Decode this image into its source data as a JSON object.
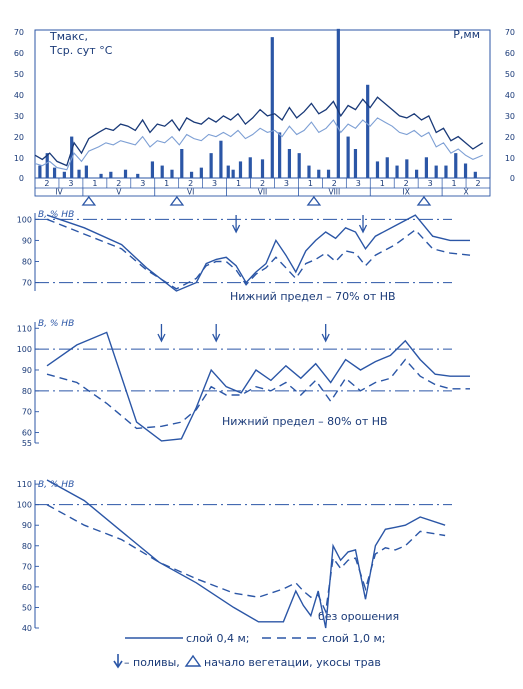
{
  "colors": {
    "ink": "#2b56a6",
    "light": "#7d9fd4",
    "dark": "#1a3a78"
  },
  "chart_data": [
    {
      "type": "bar",
      "title": "",
      "ylabel_left_lines": [
        "Тмакс,",
        "Тср. сут °С"
      ],
      "ylabel_right": "Р,мм",
      "left_ticks": [
        "70",
        "60",
        "50",
        "40",
        "30",
        "20",
        "10",
        "0"
      ],
      "right_ticks": [
        "70",
        "60",
        "50",
        "40",
        "30",
        "20",
        "10",
        "0"
      ],
      "ylim": [
        0,
        70
      ],
      "months": [
        "IV",
        "V",
        "VI",
        "VII",
        "VIII",
        "IX",
        "X"
      ],
      "decades": [
        "2",
        "3",
        "1",
        "2",
        "3",
        "1",
        "2",
        "3",
        "1",
        "2",
        "3",
        "1",
        "2",
        "3",
        "1",
        "2",
        "3",
        "1",
        "2"
      ],
      "series": [
        {
          "name": "Тмакс",
          "x": [
            0,
            3,
            6,
            9,
            13,
            16,
            19,
            22,
            26,
            29,
            32,
            35,
            38,
            41,
            44,
            47,
            50,
            53,
            56,
            59,
            62,
            65,
            68,
            71,
            74,
            77,
            80,
            83,
            86,
            89,
            92,
            95,
            98,
            101,
            104,
            107,
            110,
            113,
            116,
            119,
            122,
            125,
            128,
            131,
            134,
            137,
            140,
            143,
            146,
            149,
            152,
            155,
            158,
            161,
            164,
            167,
            170,
            173,
            176,
            179,
            183
          ],
          "values": [
            11,
            9,
            12,
            8,
            6,
            17,
            12,
            19,
            22,
            24,
            23,
            26,
            25,
            23,
            28,
            22,
            26,
            25,
            28,
            23,
            29,
            27,
            26,
            29,
            27,
            30,
            28,
            31,
            26,
            29,
            33,
            30,
            31,
            28,
            34,
            29,
            32,
            36,
            31,
            33,
            37,
            30,
            35,
            33,
            38,
            34,
            39,
            36,
            33,
            30,
            29,
            31,
            28,
            30,
            22,
            24,
            18,
            20,
            17,
            14,
            17
          ]
        },
        {
          "name": "Тср. сут",
          "x": [
            0,
            3,
            6,
            9,
            13,
            16,
            19,
            22,
            26,
            29,
            32,
            35,
            38,
            41,
            44,
            47,
            50,
            53,
            56,
            59,
            62,
            65,
            68,
            71,
            74,
            77,
            80,
            83,
            86,
            89,
            92,
            95,
            98,
            101,
            104,
            107,
            110,
            113,
            116,
            119,
            122,
            125,
            128,
            131,
            134,
            137,
            140,
            143,
            146,
            149,
            152,
            155,
            158,
            161,
            164,
            167,
            170,
            173,
            176,
            179,
            183
          ],
          "values": [
            7,
            6,
            8,
            5,
            4,
            12,
            8,
            13,
            15,
            17,
            16,
            18,
            17,
            16,
            20,
            15,
            18,
            17,
            20,
            16,
            21,
            19,
            18,
            21,
            20,
            22,
            20,
            23,
            19,
            21,
            24,
            22,
            23,
            20,
            25,
            21,
            23,
            27,
            22,
            24,
            28,
            22,
            26,
            24,
            28,
            25,
            29,
            27,
            25,
            22,
            21,
            23,
            20,
            22,
            15,
            17,
            12,
            14,
            11,
            9,
            11
          ]
        },
        {
          "name": "Р",
          "x": [
            2,
            5,
            8,
            12,
            15,
            18,
            21,
            27,
            31,
            37,
            42,
            48,
            52,
            56,
            60,
            64,
            68,
            72,
            76,
            79,
            81,
            84,
            88,
            93,
            97,
            100,
            104,
            108,
            112,
            116,
            120,
            124,
            128,
            131,
            136,
            140,
            144,
            148,
            152,
            156,
            160,
            164,
            168,
            172,
            176,
            180
          ],
          "values": [
            6,
            12,
            5,
            3,
            20,
            4,
            6,
            2,
            3,
            4,
            2,
            8,
            6,
            4,
            14,
            3,
            5,
            12,
            18,
            6,
            4,
            8,
            10,
            9,
            68,
            22,
            14,
            12,
            6,
            4,
            4,
            72,
            20,
            14,
            45,
            8,
            10,
            6,
            9,
            4,
            10,
            6,
            6,
            12,
            7,
            3
          ]
        }
      ],
      "markers_x": [
        22,
        58,
        114,
        159
      ]
    },
    {
      "type": "line",
      "ylabel": "В, % НВ",
      "yticks": [
        "100",
        "90",
        "80",
        "70"
      ],
      "ylim": [
        66,
        103
      ],
      "threshold": 70,
      "upper": 100,
      "annotation": "Нижний предел – 70% от НВ",
      "series": [
        {
          "name": "слой 0,4 м",
          "x": [
            0,
            15,
            30,
            40,
            52,
            60,
            64,
            68,
            72,
            76,
            80,
            84,
            88,
            92,
            96,
            100,
            104,
            108,
            112,
            116,
            120,
            124,
            128,
            132,
            140,
            148,
            155,
            162,
            170
          ],
          "values": [
            102,
            96,
            88,
            77,
            66,
            70,
            79,
            81,
            82,
            78,
            70,
            75,
            79,
            90,
            83,
            75,
            85,
            90,
            94,
            91,
            96,
            94,
            86,
            92,
            97,
            102,
            92,
            90,
            90
          ]
        },
        {
          "name": "слой 1,0 м",
          "x": [
            0,
            15,
            30,
            40,
            52,
            60,
            64,
            68,
            72,
            76,
            80,
            84,
            88,
            92,
            96,
            100,
            104,
            108,
            112,
            116,
            120,
            124,
            128,
            132,
            140,
            148,
            155,
            162,
            170
          ],
          "values": [
            100,
            93,
            86,
            76,
            67,
            72,
            78,
            80,
            80,
            76,
            69,
            74,
            77,
            82,
            77,
            72,
            79,
            81,
            84,
            80,
            85,
            84,
            78,
            83,
            88,
            95,
            86,
            84,
            83
          ]
        }
      ],
      "arrows_x": [
        76,
        127
      ]
    },
    {
      "type": "line",
      "ylabel": "В, % НВ",
      "yticks": [
        "110",
        "100",
        "90",
        "80",
        "70",
        "60",
        "55"
      ],
      "ylim": [
        55,
        113
      ],
      "threshold": 80,
      "upper": 100,
      "annotation": "Нижний предел – 80% от НВ",
      "series": [
        {
          "name": "слой 0,4 м",
          "x": [
            0,
            12,
            24,
            36,
            46,
            54,
            60,
            66,
            72,
            78,
            84,
            90,
            96,
            102,
            108,
            114,
            120,
            126,
            132,
            138,
            144,
            150,
            156,
            162,
            170
          ],
          "values": [
            92,
            102,
            108,
            65,
            56,
            57,
            72,
            90,
            82,
            79,
            90,
            85,
            92,
            86,
            93,
            84,
            95,
            90,
            94,
            97,
            104,
            95,
            88,
            87,
            87
          ]
        },
        {
          "name": "слой 1,0 м",
          "x": [
            0,
            12,
            24,
            36,
            46,
            54,
            60,
            66,
            72,
            78,
            84,
            90,
            96,
            102,
            108,
            114,
            120,
            126,
            132,
            138,
            144,
            150,
            156,
            162,
            170
          ],
          "values": [
            88,
            84,
            74,
            62,
            63,
            65,
            71,
            82,
            78,
            78,
            82,
            80,
            84,
            78,
            85,
            75,
            86,
            80,
            84,
            86,
            95,
            87,
            83,
            81,
            81
          ]
        }
      ],
      "arrows_x": [
        46,
        68,
        112
      ]
    },
    {
      "type": "line",
      "ylabel": "В, % НВ",
      "yticks": [
        "110",
        "100",
        "90",
        "80",
        "70",
        "60",
        "50",
        "40"
      ],
      "ylim": [
        40,
        112
      ],
      "upper": 100,
      "annotation": "без орошения",
      "series": [
        {
          "name": "слой 0,4 м",
          "x": [
            0,
            15,
            30,
            45,
            60,
            75,
            85,
            95,
            100,
            103,
            106,
            109,
            112,
            115,
            118,
            121,
            124,
            128,
            132,
            136,
            140,
            144,
            150,
            160
          ],
          "values": [
            112,
            102,
            87,
            72,
            62,
            50,
            43,
            43,
            58,
            51,
            46,
            58,
            40,
            80,
            73,
            77,
            78,
            54,
            80,
            88,
            89,
            90,
            94,
            90
          ]
        },
        {
          "name": "слой 1,0 м",
          "x": [
            0,
            15,
            30,
            45,
            60,
            75,
            85,
            95,
            100,
            103,
            106,
            109,
            112,
            115,
            118,
            121,
            124,
            128,
            132,
            136,
            140,
            144,
            150,
            160
          ],
          "values": [
            100,
            90,
            83,
            72,
            64,
            57,
            55,
            59,
            62,
            58,
            55,
            56,
            48,
            74,
            69,
            73,
            74,
            59,
            76,
            79,
            78,
            80,
            87,
            85
          ]
        }
      ]
    }
  ],
  "legend": {
    "line1": "слой 0,4 м;",
    "line2": "слой 1,0 м;",
    "arrow": "– поливы,",
    "triangle": "начало вегетации, укосы трав"
  }
}
